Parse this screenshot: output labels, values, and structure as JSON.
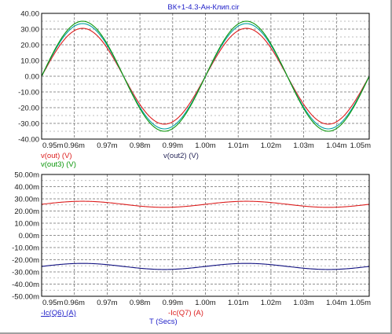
{
  "window": {
    "title": "ВК+1-4.3-Ан-Клип.cir"
  },
  "colors": {
    "red": "#dc1e1e",
    "green": "#0a960a",
    "blue": "#101080",
    "teal": "#00a0a0",
    "grid": "#6e6e6e",
    "label_blue": "#1e1ec8",
    "label_dark": "#28285a"
  },
  "chart_data": [
    {
      "type": "line",
      "title": "ВК+1-4.3-Ан-Клип.cir",
      "xlim": [
        0.95,
        1.05
      ],
      "x_unit": "ms",
      "ylim": [
        -40,
        40
      ],
      "grid": true,
      "xtick_labels": [
        "0.95m",
        "0.96m",
        "0.97m",
        "0.98m",
        "0.99m",
        "1.00m",
        "1.01m",
        "1.02m",
        "1.03m",
        "1.04m",
        "1.05m"
      ],
      "ytick_labels": [
        "40.00",
        "30.00",
        "20.00",
        "10.00",
        "0.00",
        "-10.00",
        "-20.00",
        "-30.00",
        "-40.00"
      ],
      "period_ms": 0.05,
      "series": [
        {
          "name": "v(out) (V)",
          "color": "red",
          "waveform": "sine",
          "amplitude": 30.5,
          "offset": 0.0,
          "phase_zero_ms": 0.95
        },
        {
          "name": "v(out2) (V)",
          "color": "teal",
          "waveform": "sine",
          "amplitude": 33.5,
          "offset": 0.0,
          "phase_zero_ms": 0.95
        },
        {
          "name": "v(out3) (V)",
          "color": "green",
          "waveform": "sine",
          "amplitude": 35.0,
          "offset": 0.0,
          "phase_zero_ms": 0.95
        }
      ]
    },
    {
      "type": "line",
      "xlim": [
        0.95,
        1.05
      ],
      "x_unit": "ms",
      "xlabel": "T (Secs)",
      "ylim": [
        -50,
        50
      ],
      "y_unit": "mA",
      "grid": true,
      "xtick_labels": [
        "0.95m",
        "0.96m",
        "0.97m",
        "0.98m",
        "0.99m",
        "1.00m",
        "1.01m",
        "1.02m",
        "1.03m",
        "1.04m",
        "1.05m"
      ],
      "ytick_labels": [
        "50.00m",
        "40.00m",
        "30.00m",
        "20.00m",
        "10.00m",
        "0.00m",
        "-10.00m",
        "-20.00m",
        "-30.00m",
        "-40.00m",
        "-50.00m"
      ],
      "period_ms": 0.05,
      "series": [
        {
          "name": "-Ic(Q7) (A)",
          "color": "red",
          "waveform": "sine",
          "amplitude": 2.5,
          "offset": 25.5,
          "phase_zero_ms": 0.95
        },
        {
          "name": "-Ic(Q6) (A)",
          "color": "blue",
          "waveform": "sine",
          "amplitude": 2.5,
          "offset": -25.5,
          "phase_zero_ms": 0.95
        }
      ]
    }
  ]
}
